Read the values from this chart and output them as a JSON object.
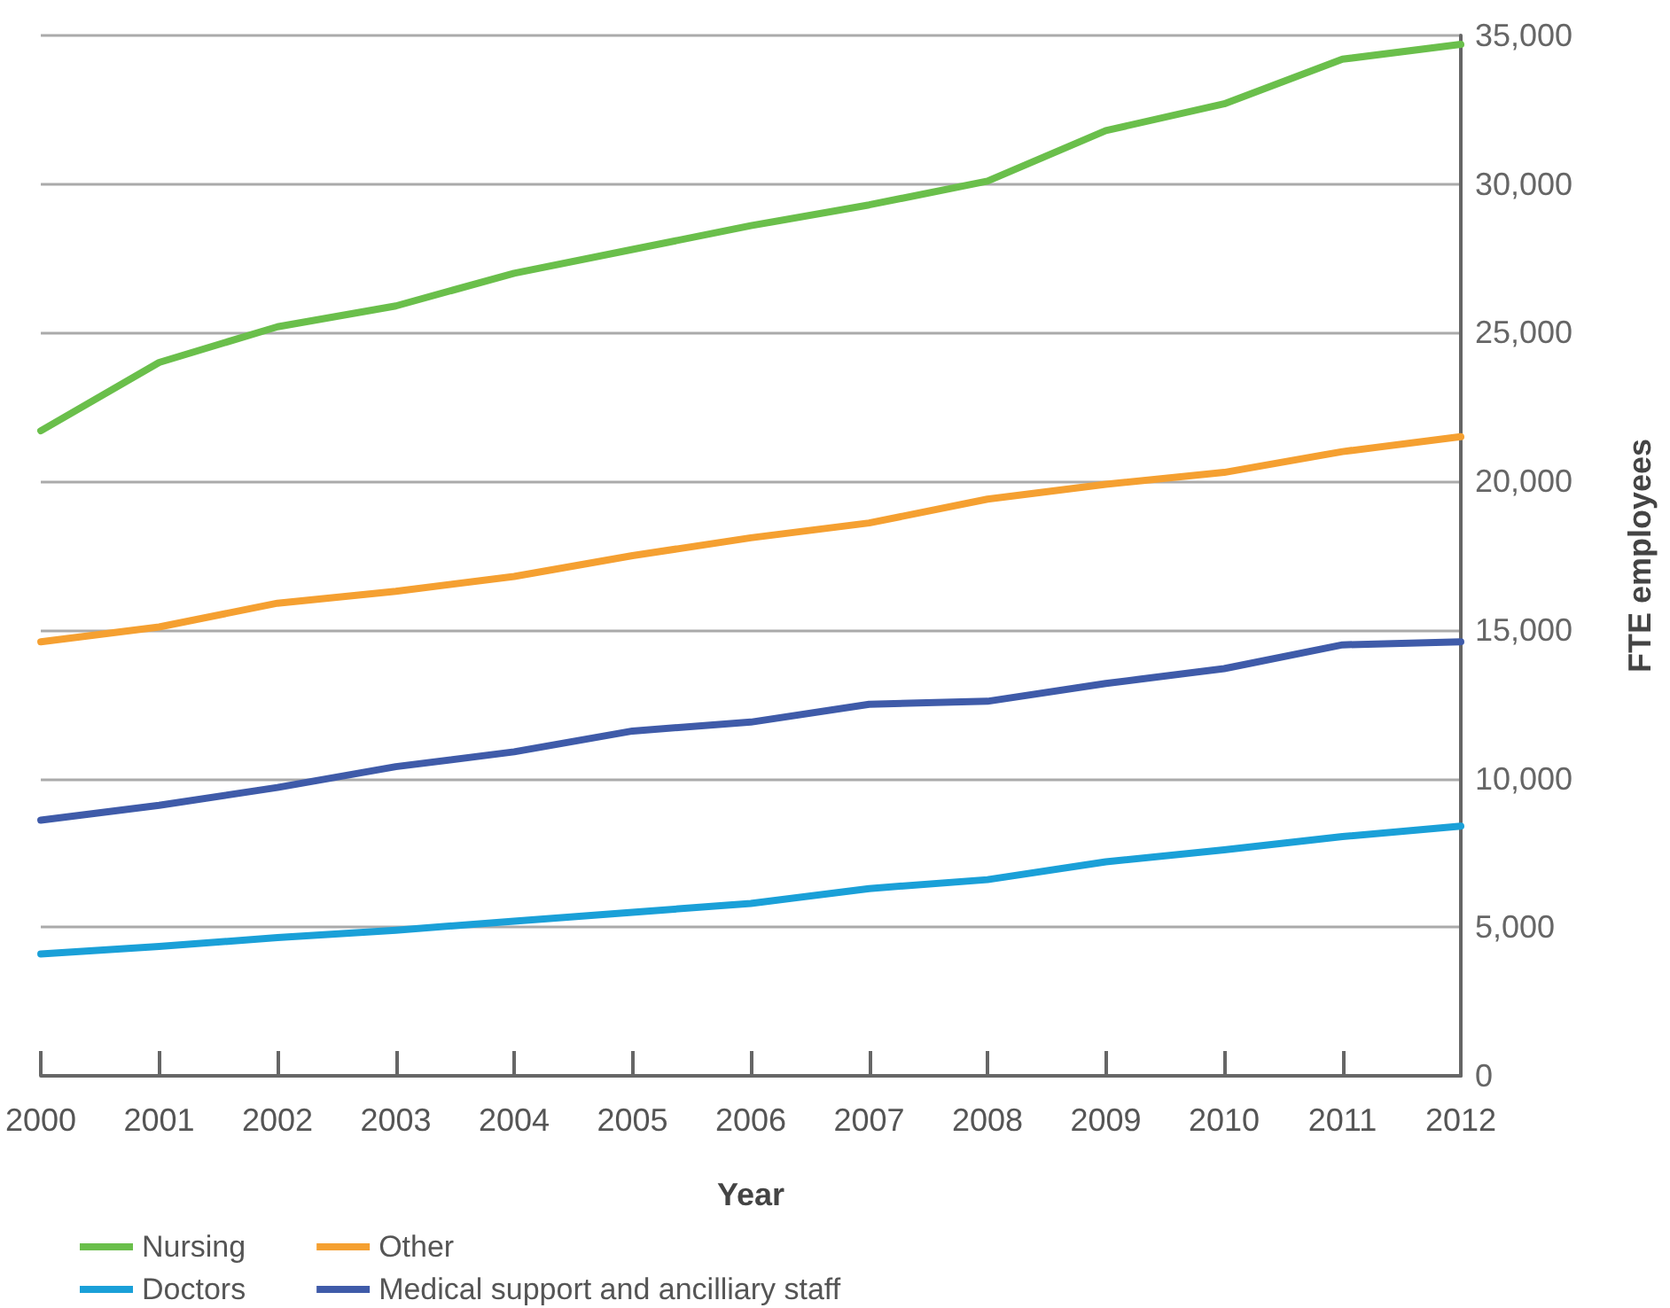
{
  "chart_data": {
    "type": "line",
    "xlabel": "Year",
    "ylabel": "FTE employees",
    "x": [
      2000,
      2001,
      2002,
      2003,
      2004,
      2005,
      2006,
      2007,
      2008,
      2009,
      2010,
      2011,
      2012
    ],
    "series": [
      {
        "name": "Nursing",
        "color": "#6abf4b",
        "values": [
          21700,
          24000,
          25200,
          25900,
          27000,
          27800,
          28600,
          29300,
          30100,
          31800,
          32700,
          34200,
          34700
        ]
      },
      {
        "name": "Other",
        "color": "#f5a031",
        "values": [
          14600,
          15100,
          15900,
          16300,
          16800,
          17500,
          18100,
          18600,
          19400,
          19900,
          20300,
          21000,
          21500
        ]
      },
      {
        "name": "Doctors",
        "color": "#1aa0d8",
        "values": [
          4100,
          4350,
          4650,
          4900,
          5200,
          5500,
          5800,
          6300,
          6600,
          7200,
          7600,
          8050,
          8400
        ]
      },
      {
        "name": "Medical support and ancilliary staff",
        "color": "#3f5ba9",
        "values": [
          8600,
          9100,
          9700,
          10400,
          10900,
          11600,
          11900,
          12500,
          12600,
          13200,
          13700,
          14500,
          14600
        ]
      }
    ],
    "xlim": [
      2000,
      2012
    ],
    "xticks": [
      2000,
      2001,
      2002,
      2003,
      2004,
      2005,
      2006,
      2007,
      2008,
      2009,
      2010,
      2011,
      2012
    ],
    "ylim": [
      0,
      35000
    ],
    "yticks": [
      0,
      {
        "value": 5000,
        "label": "5,000"
      },
      {
        "value": 10000,
        "label": "10,000"
      },
      {
        "value": 15000,
        "label": "15,000"
      },
      {
        "value": 20000,
        "label": "20,000"
      },
      {
        "value": 25000,
        "label": "25,000"
      },
      {
        "value": 30000,
        "label": "30,000"
      },
      {
        "value": 35000,
        "label": "35,000"
      }
    ],
    "grid": "y",
    "legend": "bottom left",
    "marker": "none",
    "line_style": "solid"
  }
}
